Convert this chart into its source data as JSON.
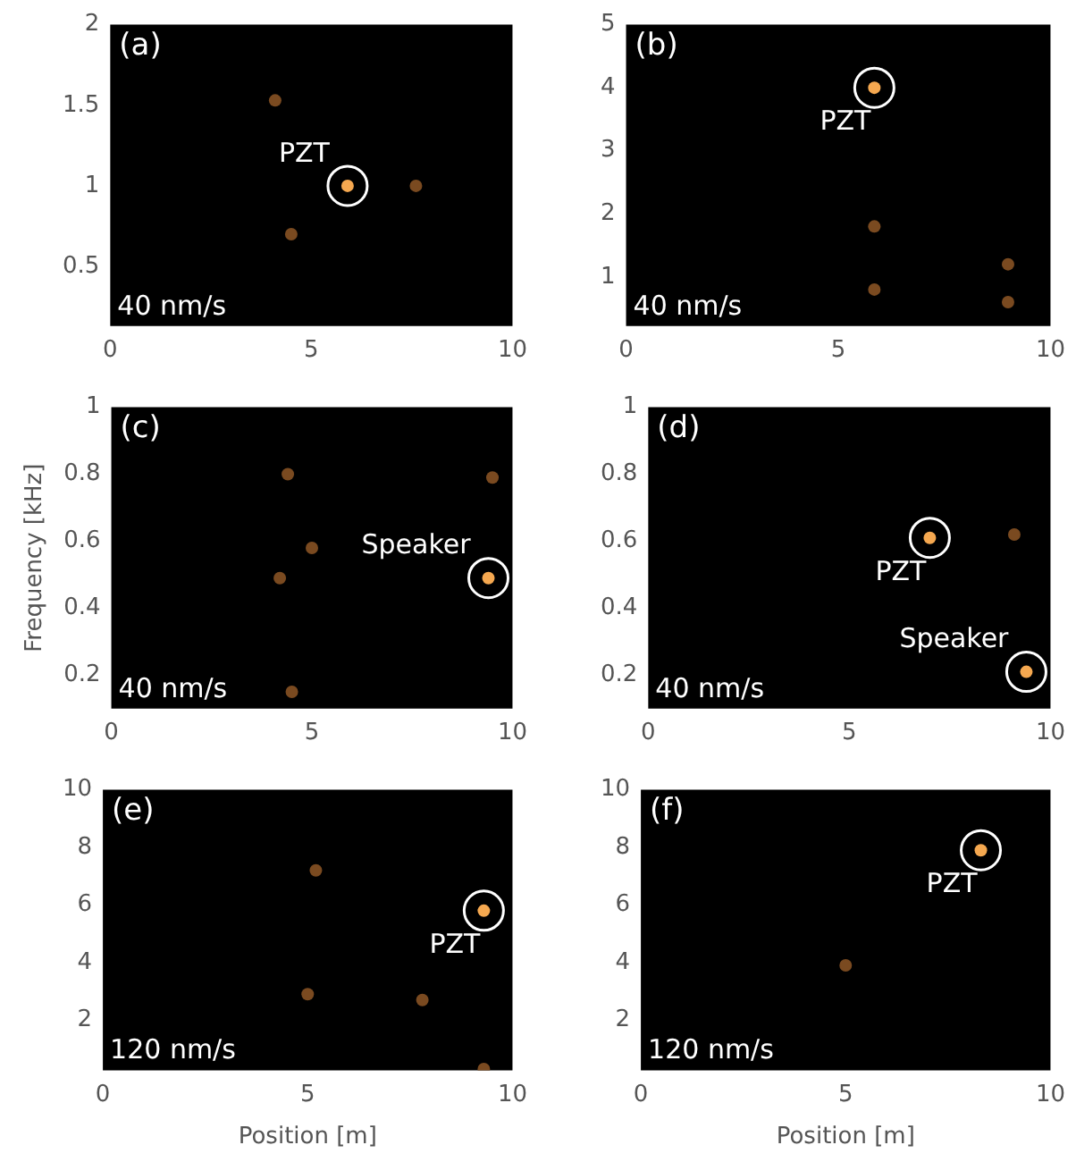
{
  "chart_data": [
    {
      "type": "scatter",
      "xlim": [
        0,
        10
      ],
      "xticks": [
        0,
        5,
        10
      ],
      "ylim": [
        0.13,
        2
      ],
      "yticks": [
        0.5,
        1,
        1.5,
        2
      ],
      "grid": false,
      "legend": false,
      "marker": "circle",
      "annotations": [
        "(a)",
        "40 nm/s",
        {
          "text": "PZT",
          "x": 5.9,
          "y": 1.0
        }
      ],
      "series": [
        {
          "color": "#f5a850",
          "x": [
            5.9
          ],
          "values": [
            1.0
          ]
        },
        {
          "color": "#7a4a20",
          "x": [
            7.6,
            4.5,
            4.1
          ],
          "values": [
            1.0,
            0.7,
            1.53
          ]
        }
      ]
    },
    {
      "type": "scatter",
      "xlim": [
        0,
        10
      ],
      "xticks": [
        0,
        5,
        10
      ],
      "ylim": [
        0.22,
        5
      ],
      "yticks": [
        1,
        2,
        3,
        4,
        5
      ],
      "grid": false,
      "legend": false,
      "marker": "circle",
      "annotations": [
        "(b)",
        "40 nm/s",
        {
          "text": "PZT",
          "x": 5.85,
          "y": 4.0
        }
      ],
      "series": [
        {
          "color": "#f5a850",
          "x": [
            5.85
          ],
          "values": [
            4.0
          ]
        },
        {
          "color": "#7a4a20",
          "x": [
            9.0,
            9.0,
            5.85,
            5.85
          ],
          "values": [
            0.6,
            1.2,
            1.8,
            0.8
          ]
        }
      ]
    },
    {
      "type": "scatter",
      "xlim": [
        0,
        10
      ],
      "xticks": [
        0,
        5,
        10
      ],
      "ylim": [
        0.1,
        1
      ],
      "yticks": [
        0.2,
        0.4,
        0.6,
        0.8,
        1
      ],
      "grid": false,
      "legend": false,
      "marker": "circle",
      "ylabel": "Frequency [kHz]",
      "annotations": [
        "(c)",
        "40 nm/s",
        {
          "text": "Speaker",
          "x": 9.4,
          "y": 0.49
        }
      ],
      "series": [
        {
          "color": "#f5a850",
          "x": [
            9.4
          ],
          "values": [
            0.49
          ]
        },
        {
          "color": "#7a4a20",
          "x": [
            9.5,
            4.2,
            5.0,
            4.5,
            4.4
          ],
          "values": [
            0.79,
            0.49,
            0.58,
            0.15,
            0.8
          ]
        }
      ]
    },
    {
      "type": "scatter",
      "xlim": [
        0,
        10
      ],
      "xticks": [
        0,
        5,
        10
      ],
      "ylim": [
        0.1,
        1
      ],
      "yticks": [
        0.2,
        0.4,
        0.6,
        0.8,
        1
      ],
      "grid": false,
      "legend": false,
      "marker": "circle",
      "annotations": [
        "(d)",
        "40 nm/s",
        {
          "text": "PZT",
          "x": 7.0,
          "y": 0.61
        },
        {
          "text": "Speaker",
          "x": 9.4,
          "y": 0.21
        }
      ],
      "series": [
        {
          "color": "#f5a850",
          "x": [
            7.0,
            9.4
          ],
          "values": [
            0.61,
            0.21
          ]
        },
        {
          "color": "#7a4a20",
          "x": [
            9.1
          ],
          "values": [
            0.62
          ]
        }
      ]
    },
    {
      "type": "scatter",
      "xlim": [
        0,
        10
      ],
      "xticks": [
        0,
        5,
        10
      ],
      "ylim": [
        0.25,
        10
      ],
      "yticks": [
        2,
        4,
        6,
        8,
        10
      ],
      "grid": false,
      "legend": false,
      "marker": "circle",
      "xlabel": "Position [m]",
      "annotations": [
        "(e)",
        "120 nm/s",
        {
          "text": "PZT",
          "x": 9.3,
          "y": 5.8
        }
      ],
      "series": [
        {
          "color": "#f5a850",
          "x": [
            9.3
          ],
          "values": [
            5.8
          ]
        },
        {
          "color": "#7a4a20",
          "x": [
            7.8,
            5.2,
            5.0,
            9.3
          ],
          "values": [
            2.7,
            7.2,
            2.9,
            0.3
          ]
        }
      ]
    },
    {
      "type": "scatter",
      "xlim": [
        0,
        10
      ],
      "xticks": [
        0,
        5,
        10
      ],
      "ylim": [
        0.25,
        10
      ],
      "yticks": [
        2,
        4,
        6,
        8,
        10
      ],
      "grid": false,
      "legend": false,
      "marker": "circle",
      "xlabel": "Position [m]",
      "annotations": [
        "(f)",
        "120 nm/s",
        {
          "text": "PZT",
          "x": 8.3,
          "y": 7.9
        }
      ],
      "series": [
        {
          "color": "#f5a850",
          "x": [
            8.3
          ],
          "values": [
            7.9
          ]
        },
        {
          "color": "#7a4a20",
          "x": [
            5.0
          ],
          "values": [
            3.9
          ]
        }
      ]
    }
  ]
}
